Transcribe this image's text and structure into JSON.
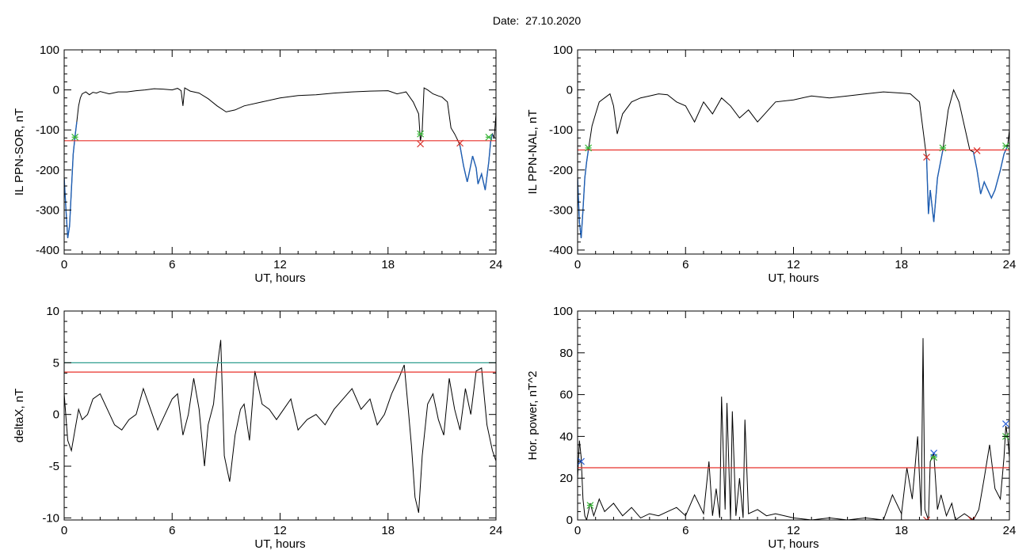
{
  "page_title": "Date:  27.10.2020",
  "colors": {
    "threshold": "#e8312a",
    "threshold2": "#2f9d8f",
    "substorm_segment": "#1f5fb4",
    "green_mark": "#3ab53a",
    "red_mark": "#d8302a",
    "blue_mark": "#2a5fd6",
    "trace": "#000000"
  },
  "chart_data": [
    {
      "id": "ppn-sor",
      "type": "line",
      "title": "",
      "xlabel": "UT, hours",
      "ylabel": "IL PPN-SOR, nT",
      "xlim": [
        0,
        24
      ],
      "ylim": [
        -410,
        100
      ],
      "xticks": [
        0,
        6,
        12,
        18,
        24
      ],
      "yticks": [
        -400,
        -300,
        -200,
        -100,
        0,
        100
      ],
      "threshold": -127,
      "x": [
        0,
        0.1,
        0.2,
        0.3,
        0.4,
        0.5,
        0.6,
        0.7,
        0.8,
        0.9,
        1.0,
        1.2,
        1.4,
        1.6,
        1.8,
        2.0,
        2.5,
        3.0,
        3.5,
        4.0,
        4.5,
        5.0,
        5.5,
        6.0,
        6.3,
        6.5,
        6.6,
        6.7,
        7.0,
        7.5,
        8.0,
        8.5,
        9.0,
        9.5,
        10.0,
        11.0,
        12.0,
        13.0,
        14.0,
        15.0,
        16.0,
        17.0,
        18.0,
        18.5,
        19.0,
        19.4,
        19.7,
        19.8,
        19.9,
        20.0,
        20.2,
        20.5,
        20.8,
        21.0,
        21.3,
        21.5,
        21.7,
        21.9,
        22.0,
        22.2,
        22.4,
        22.5,
        22.7,
        22.9,
        23.0,
        23.2,
        23.4,
        23.6,
        23.7,
        23.8,
        23.9,
        24.0
      ],
      "y": [
        -220,
        -300,
        -370,
        -340,
        -250,
        -160,
        -118,
        -80,
        -40,
        -20,
        -10,
        -5,
        -12,
        -6,
        -8,
        -4,
        -10,
        -5,
        -5,
        -2,
        0,
        3,
        2,
        0,
        4,
        -2,
        -40,
        5,
        -3,
        -8,
        -22,
        -40,
        -55,
        -50,
        -40,
        -30,
        -20,
        -14,
        -12,
        -8,
        -5,
        -3,
        -2,
        -10,
        -5,
        -30,
        -60,
        -128,
        -100,
        5,
        0,
        -10,
        -15,
        -18,
        -30,
        -95,
        -110,
        -128,
        -140,
        -190,
        -230,
        -210,
        -165,
        -195,
        -235,
        -210,
        -250,
        -180,
        -130,
        -110,
        -120,
        -60
      ],
      "substorms": [
        [
          0.0,
          0.7
        ],
        [
          22.0,
          23.8
        ]
      ],
      "markers": [
        {
          "x": 0.6,
          "y": -118,
          "kind": "green"
        },
        {
          "x": 19.8,
          "y": -110,
          "kind": "green"
        },
        {
          "x": 19.8,
          "y": -135,
          "kind": "red"
        },
        {
          "x": 22.0,
          "y": -133,
          "kind": "red"
        },
        {
          "x": 23.6,
          "y": -118,
          "kind": "green"
        }
      ]
    },
    {
      "id": "ppn-nal",
      "type": "line",
      "title": "",
      "xlabel": "UT, hours",
      "ylabel": "IL PPN-NAL, nT",
      "xlim": [
        0,
        24
      ],
      "ylim": [
        -410,
        100
      ],
      "xticks": [
        0,
        6,
        12,
        18,
        24
      ],
      "yticks": [
        -400,
        -300,
        -200,
        -100,
        0,
        100
      ],
      "threshold": -150,
      "x": [
        0,
        0.1,
        0.2,
        0.3,
        0.4,
        0.5,
        0.6,
        0.8,
        1.0,
        1.2,
        1.5,
        1.8,
        2.0,
        2.2,
        2.5,
        3.0,
        3.5,
        4.0,
        4.5,
        5.0,
        5.5,
        6.0,
        6.5,
        7.0,
        7.5,
        8.0,
        8.5,
        9.0,
        9.5,
        10.0,
        11.0,
        12.0,
        13.0,
        14.0,
        15.0,
        16.0,
        17.0,
        18.0,
        18.5,
        19.0,
        19.2,
        19.4,
        19.5,
        19.6,
        19.8,
        20.0,
        20.3,
        20.6,
        20.9,
        21.2,
        21.5,
        21.8,
        22.0,
        22.2,
        22.4,
        22.6,
        22.8,
        23.0,
        23.2,
        23.5,
        23.7,
        23.9,
        24.0
      ],
      "y": [
        -220,
        -330,
        -370,
        -300,
        -220,
        -180,
        -150,
        -90,
        -60,
        -30,
        -20,
        -10,
        -40,
        -110,
        -60,
        -30,
        -20,
        -15,
        -10,
        -12,
        -30,
        -40,
        -80,
        -30,
        -60,
        -20,
        -40,
        -70,
        -50,
        -80,
        -30,
        -25,
        -15,
        -20,
        -15,
        -10,
        -5,
        -8,
        -10,
        -30,
        -100,
        -170,
        -310,
        -250,
        -330,
        -220,
        -150,
        -50,
        0,
        -30,
        -90,
        -150,
        -155,
        -200,
        -260,
        -230,
        -250,
        -270,
        -250,
        -200,
        -160,
        -140,
        -100
      ],
      "substorms": [
        [
          0.0,
          0.6
        ],
        [
          19.4,
          20.3
        ],
        [
          22.0,
          23.9
        ]
      ],
      "markers": [
        {
          "x": 0.6,
          "y": -145,
          "kind": "green"
        },
        {
          "x": 19.4,
          "y": -168,
          "kind": "red"
        },
        {
          "x": 20.3,
          "y": -145,
          "kind": "green"
        },
        {
          "x": 22.2,
          "y": -152,
          "kind": "red"
        },
        {
          "x": 23.8,
          "y": -140,
          "kind": "green"
        }
      ]
    },
    {
      "id": "deltax",
      "type": "line",
      "title": "",
      "xlabel": "UT, hours",
      "ylabel": "deltaX, nT",
      "xlim": [
        0,
        24
      ],
      "ylim": [
        -10.2,
        10
      ],
      "xticks": [
        0,
        6,
        12,
        18,
        24
      ],
      "yticks": [
        -10,
        -5,
        0,
        5,
        10
      ],
      "threshold": 4.1,
      "threshold2": 5.0,
      "x": [
        0,
        0.2,
        0.4,
        0.6,
        0.8,
        1.0,
        1.3,
        1.6,
        2.0,
        2.4,
        2.8,
        3.2,
        3.6,
        4.0,
        4.4,
        4.8,
        5.2,
        5.6,
        6.0,
        6.3,
        6.6,
        6.9,
        7.2,
        7.5,
        7.8,
        8.0,
        8.3,
        8.5,
        8.7,
        8.9,
        9.2,
        9.5,
        9.8,
        10.0,
        10.3,
        10.6,
        11.0,
        11.4,
        11.8,
        12.2,
        12.6,
        13.0,
        13.5,
        14.0,
        14.5,
        15.0,
        15.5,
        16.0,
        16.5,
        17.0,
        17.4,
        17.8,
        18.2,
        18.6,
        18.9,
        19.1,
        19.3,
        19.5,
        19.7,
        19.9,
        20.2,
        20.5,
        20.8,
        21.1,
        21.4,
        21.7,
        22.0,
        22.3,
        22.6,
        22.9,
        23.2,
        23.5,
        23.8,
        24.0
      ],
      "y": [
        2.0,
        -2.5,
        -3.5,
        -1.5,
        0.5,
        -0.5,
        0.0,
        1.5,
        2.0,
        0.5,
        -1.0,
        -1.5,
        -0.5,
        0.0,
        2.5,
        0.5,
        -1.5,
        0.0,
        1.5,
        2.0,
        -2.0,
        0.0,
        3.5,
        0.5,
        -5.0,
        -1.0,
        1.0,
        4.5,
        7.2,
        -4.0,
        -6.5,
        -2.0,
        0.5,
        1.0,
        -2.5,
        4.2,
        1.0,
        0.5,
        -0.5,
        0.5,
        1.5,
        -1.5,
        -0.5,
        0.0,
        -1.0,
        0.5,
        1.5,
        2.5,
        0.5,
        1.5,
        -1.0,
        0.0,
        2.0,
        3.5,
        4.8,
        1.0,
        -3.0,
        -8.0,
        -9.5,
        -4.0,
        1.0,
        2.0,
        -0.5,
        -2.0,
        3.5,
        0.5,
        -1.5,
        2.5,
        0.0,
        4.2,
        4.5,
        -1.0,
        -3.5,
        -4.5
      ]
    },
    {
      "id": "hor-power",
      "type": "line",
      "title": "",
      "xlabel": "UT, hours",
      "ylabel": "Hor. power, nT^2",
      "xlim": [
        0,
        24
      ],
      "ylim": [
        0,
        100
      ],
      "xticks": [
        0,
        6,
        12,
        18,
        24
      ],
      "yticks": [
        0,
        20,
        40,
        60,
        80,
        100
      ],
      "threshold": 25,
      "x": [
        0,
        0.1,
        0.2,
        0.3,
        0.4,
        0.5,
        0.7,
        0.9,
        1.2,
        1.5,
        2.0,
        2.5,
        3.0,
        3.5,
        4.0,
        4.5,
        5.0,
        5.5,
        6.0,
        6.5,
        7.0,
        7.3,
        7.5,
        7.7,
        7.9,
        8.0,
        8.2,
        8.3,
        8.5,
        8.6,
        8.8,
        9.0,
        9.2,
        9.3,
        9.5,
        10.0,
        10.5,
        11.0,
        12.0,
        13.0,
        14.0,
        15.0,
        16.0,
        17.0,
        17.5,
        18.0,
        18.3,
        18.6,
        18.9,
        19.1,
        19.2,
        19.3,
        19.5,
        19.6,
        19.8,
        20.0,
        20.2,
        20.5,
        20.8,
        21.0,
        21.5,
        22.0,
        22.3,
        22.6,
        22.9,
        23.2,
        23.5,
        23.7,
        23.8,
        23.9,
        24.0
      ],
      "y": [
        20,
        38,
        30,
        10,
        2,
        0,
        8,
        2,
        10,
        4,
        8,
        2,
        6,
        1,
        3,
        2,
        4,
        6,
        2,
        12,
        3,
        28,
        2,
        15,
        1,
        59,
        5,
        56,
        0,
        52,
        2,
        20,
        1,
        48,
        3,
        5,
        2,
        3,
        1,
        0,
        1,
        0,
        1,
        0,
        12,
        3,
        25,
        10,
        40,
        2,
        87,
        5,
        0,
        28,
        32,
        5,
        12,
        2,
        8,
        0,
        3,
        0,
        5,
        20,
        36,
        15,
        10,
        30,
        45,
        40,
        30
      ],
      "markers": [
        {
          "x": 0.2,
          "y": 28,
          "kind": "blue"
        },
        {
          "x": 0.7,
          "y": 7,
          "kind": "green"
        },
        {
          "x": 19.8,
          "y": 30,
          "kind": "green"
        },
        {
          "x": 19.8,
          "y": 32,
          "kind": "blue"
        },
        {
          "x": 19.4,
          "y": 0,
          "kind": "red"
        },
        {
          "x": 21.9,
          "y": 0,
          "kind": "red"
        },
        {
          "x": 23.8,
          "y": 46,
          "kind": "blue"
        },
        {
          "x": 23.8,
          "y": 40,
          "kind": "green"
        }
      ]
    }
  ]
}
